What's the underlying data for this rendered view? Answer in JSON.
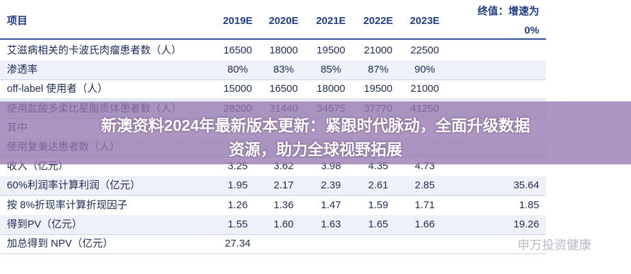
{
  "table": {
    "header": {
      "label": "项目",
      "years": [
        "2019E",
        "2020E",
        "2021E",
        "2022E",
        "2023E"
      ],
      "terminal": [
        "终值：增速为",
        "0%"
      ]
    },
    "rows": [
      {
        "label": "艾滋病相关的卡波氏肉瘤患者数（人）",
        "values": [
          "16500",
          "18000",
          "19500",
          "21000",
          "22500"
        ]
      },
      {
        "label": "渗透率",
        "values": [
          "80%",
          "83%",
          "85%",
          "87%",
          "90%"
        ]
      },
      {
        "label": "off-label 使用者（人）",
        "values": [
          "15000",
          "16500",
          "18000",
          "19500",
          "21000"
        ]
      },
      {
        "label": "使用盐酸多柔比星脂质体患者数（人）",
        "values": [
          "28200",
          "31440",
          "34575",
          "37770",
          "41250"
        ]
      },
      {
        "label": "其中"
      },
      {
        "label": "使用复美达患者数（人）"
      },
      {
        "label": "收入（亿元）",
        "values": [
          "3.25",
          "3.62",
          "3.98",
          "4.35",
          "4.73"
        ]
      },
      {
        "label": "60%利润率计算利润（亿元）",
        "values": [
          "1.95",
          "2.17",
          "2.39",
          "2.61",
          "2.85"
        ],
        "terminal": "35.64"
      },
      {
        "label": "按 8%折现率计算折现因子",
        "values": [
          "1.26",
          "1.36",
          "1.47",
          "1.59",
          "1.71"
        ],
        "terminal": "1.85"
      },
      {
        "label": "得到PV（亿元）",
        "values": [
          "1.55",
          "1.60",
          "1.63",
          "1.65",
          "1.66"
        ],
        "terminal": "19.26"
      },
      {
        "label": "加总得到 NPV（亿元）",
        "values": [
          "27.34"
        ]
      }
    ]
  },
  "banner": {
    "lines": [
      "新澳资料2024年最新版本更新：紧跟时代脉动，全面升级数据",
      "资源，助力全球视野拓展"
    ]
  },
  "watermark": "申万投资健康"
}
